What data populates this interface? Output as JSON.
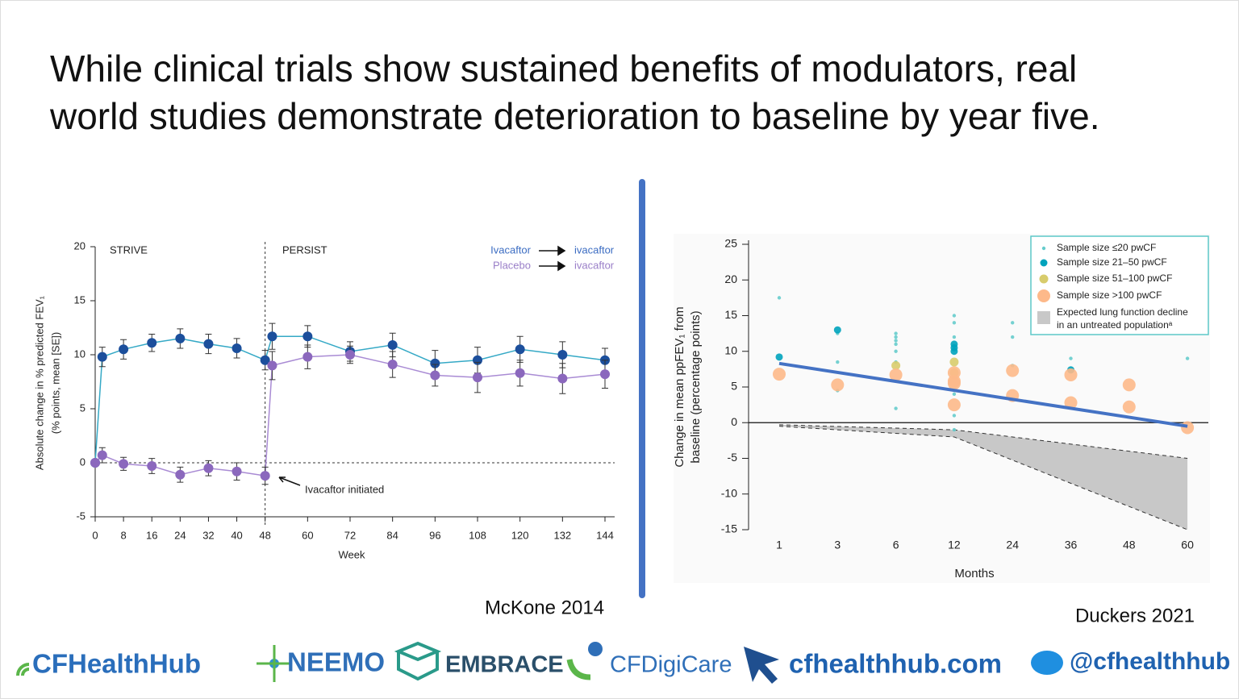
{
  "title": [
    "While clinical trials show sustained benefits of modulators, real",
    "world studies demonstrate deterioration to baseline by year five."
  ],
  "captions": [
    "McKone 2014",
    "Duckers 2021"
  ],
  "footer": [
    "CFHealthHub",
    "NEEMO",
    "EMBRACE",
    "CFDigiCare",
    "cfhealthhub.com",
    "@cfhealthhub"
  ],
  "chart_data": [
    {
      "type": "line",
      "ylabel": [
        "Absolute change in % predicted FEV₁",
        "(% points, mean [SE])"
      ],
      "xlabel": "Week",
      "annotations": [
        "STRIVE",
        "PERSIST",
        "Ivacaftor initiated"
      ],
      "x": [
        0,
        2,
        8,
        16,
        24,
        32,
        40,
        48,
        50,
        60,
        72,
        84,
        96,
        108,
        120,
        132,
        144
      ],
      "xlim": [
        0,
        144
      ],
      "xticks": [
        0,
        8,
        16,
        24,
        32,
        40,
        48,
        60,
        72,
        84,
        96,
        108,
        120,
        132,
        144
      ],
      "ylim": [
        -5,
        20
      ],
      "yticks": [
        -5,
        0,
        5,
        10,
        15,
        20
      ],
      "vline": 48,
      "series": [
        {
          "name": "Ivacaftor",
          "legend_target": "ivacaftor",
          "color": "#1c4f9c",
          "line_color": "#35a9c6",
          "text_color": "#3b6cc2",
          "values": [
            0,
            9.8,
            10.5,
            11.1,
            11.5,
            11.0,
            10.6,
            9.5,
            11.7,
            11.7,
            10.3,
            10.9,
            9.2,
            9.5,
            10.5,
            10.0,
            9.5
          ],
          "errors": [
            null,
            0.9,
            0.9,
            0.8,
            0.9,
            0.9,
            0.9,
            0.9,
            1.2,
            1.0,
            0.9,
            1.1,
            1.2,
            1.2,
            1.2,
            1.2,
            1.1
          ]
        },
        {
          "name": "Placebo",
          "legend_target": "ivacaftor",
          "color": "#8b68bd",
          "line_color": "#a98bd4",
          "text_color": "#9a7fc8",
          "values": [
            0,
            0.7,
            -0.1,
            -0.3,
            -1.1,
            -0.5,
            -0.8,
            -1.2,
            9.0,
            9.8,
            10.0,
            9.1,
            8.1,
            7.9,
            8.3,
            7.8,
            8.2
          ],
          "errors": [
            null,
            0.7,
            0.6,
            0.7,
            0.7,
            0.7,
            0.8,
            0.8,
            1.3,
            1.1,
            0.8,
            1.2,
            1.0,
            1.4,
            1.2,
            1.4,
            1.3
          ]
        }
      ]
    },
    {
      "type": "scatter",
      "ylabel": [
        "Change in mean ppFEV₁ from",
        "baseline (percentage points)"
      ],
      "xlabel": "Months",
      "categories": [
        "1",
        "3",
        "6",
        "12",
        "24",
        "36",
        "48",
        "60"
      ],
      "ylim": [
        -15,
        25
      ],
      "yticks": [
        -15,
        -10,
        -5,
        0,
        5,
        10,
        15,
        20,
        25
      ],
      "series": [
        {
          "name": "Sample size ≤20 pwCF",
          "color": "#66cccc",
          "x": [
            "1",
            "3",
            "3",
            "3",
            "6",
            "6",
            "6",
            "6",
            "6",
            "6",
            "6",
            "12",
            "12",
            "12",
            "12",
            "12",
            "12",
            "24",
            "24",
            "24",
            "36",
            "60"
          ],
          "values": [
            17.5,
            12.5,
            8.5,
            4.5,
            12.5,
            12,
            11.5,
            11,
            10,
            8.5,
            2,
            15,
            14,
            12,
            4,
            1,
            -1,
            14,
            12,
            8,
            9,
            9
          ]
        },
        {
          "name": "Sample size 21–50 pwCF",
          "color": "#00a3bc",
          "x": [
            "1",
            "3",
            "12",
            "12",
            "12",
            "36"
          ],
          "values": [
            9.2,
            13,
            11,
            10.5,
            10,
            7.4
          ]
        },
        {
          "name": "Sample size 51–100 pwCF",
          "color": "#d8cc6c",
          "x": [
            "6",
            "12",
            "12"
          ],
          "values": [
            8,
            8.5,
            7
          ]
        },
        {
          "name": "Sample size >100 pwCF",
          "color": "#fdb98a",
          "x": [
            "1",
            "3",
            "6",
            "12",
            "12",
            "12",
            "12",
            "24",
            "24",
            "36",
            "36",
            "48",
            "48",
            "60"
          ],
          "values": [
            6.8,
            5.3,
            6.7,
            7,
            5.8,
            5.5,
            2.5,
            7.3,
            3.8,
            6.7,
            2.8,
            5.3,
            2.2,
            -0.7
          ]
        }
      ],
      "trend": {
        "color": "#4472c4",
        "x": [
          "1",
          "60"
        ],
        "values": [
          8.3,
          -0.5
        ]
      },
      "area": {
        "name": [
          "Expected lung function decline",
          "in an untreated populationᵃ"
        ],
        "color": "#c8c8c8",
        "x": [
          "1",
          "12",
          "60"
        ],
        "upper": [
          -0.3,
          -1,
          -5
        ],
        "lower": [
          -0.5,
          -2,
          -15
        ]
      }
    }
  ]
}
